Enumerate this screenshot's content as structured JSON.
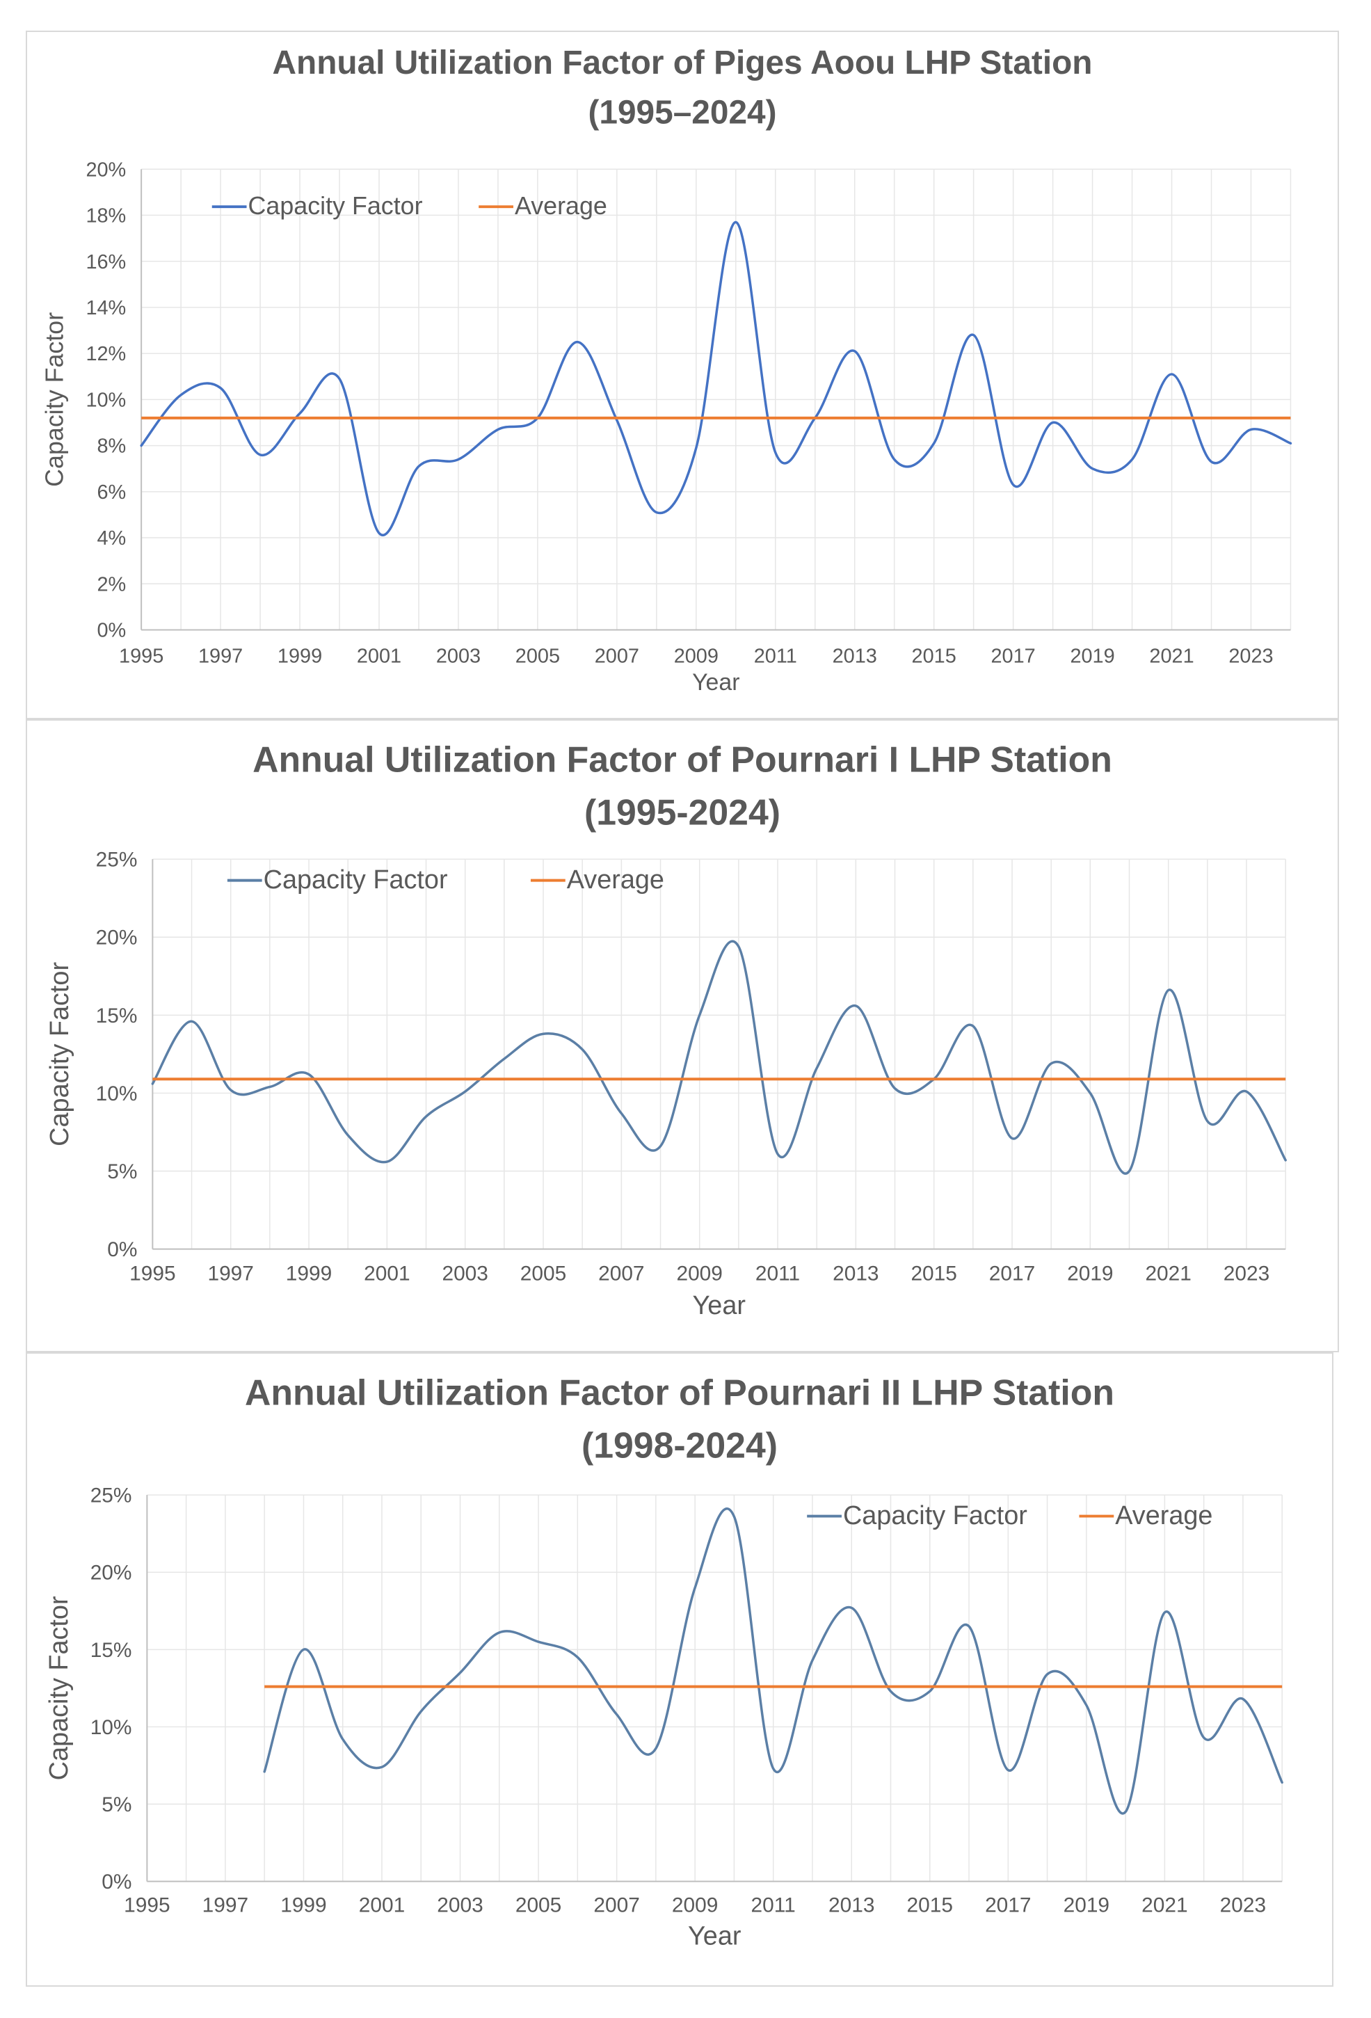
{
  "charts": [
    {
      "title_line1": "Annual Utilization Factor of Piges Aoou LHP Station",
      "title_line2": "(1995–2024)"
    },
    {
      "title_line1": "Annual Utilization Factor of Pournari I LHP Station",
      "title_line2": "(1995-2024)"
    },
    {
      "title_line1": "Annual Utilization Factor of Pournari II LHP Station",
      "title_line2": "(1998-2024)"
    }
  ],
  "colors": {
    "capacity": "#4472c4",
    "capacity_muted": "#5b7fa6",
    "average": "#ed7d31",
    "grid": "#e6e6e6",
    "axis": "#bfbfbf",
    "text": "#595959"
  },
  "chart_data": [
    {
      "type": "line",
      "title": "Annual Utilization Factor of Piges Aoou LHP Station (1995–2024)",
      "xlabel": "Year",
      "ylabel": "Capacity Factor",
      "xlim": [
        1995,
        2024
      ],
      "ylim": [
        0,
        20
      ],
      "yticks": [
        0,
        2,
        4,
        6,
        8,
        10,
        12,
        14,
        16,
        18,
        20
      ],
      "ytick_labels": [
        "0%",
        "2%",
        "4%",
        "6%",
        "8%",
        "10%",
        "12%",
        "14%",
        "16%",
        "18%",
        "20%"
      ],
      "xticks": [
        1995,
        1997,
        1999,
        2001,
        2003,
        2005,
        2007,
        2009,
        2011,
        2013,
        2015,
        2017,
        2019,
        2021,
        2023
      ],
      "xtick_labels": [
        "1995",
        "1997",
        "1999",
        "2001",
        "2003",
        "2005",
        "2007",
        "2009",
        "2011",
        "2013",
        "2015",
        "2017",
        "2019",
        "2021",
        "2023"
      ],
      "legend": {
        "position": "top-left",
        "entries": [
          "Capacity Factor",
          "Average"
        ]
      },
      "series": [
        {
          "name": "Capacity Factor",
          "x": [
            1995,
            1996,
            1997,
            1998,
            1999,
            2000,
            2001,
            2002,
            2003,
            2004,
            2005,
            2006,
            2007,
            2008,
            2009,
            2010,
            2011,
            2012,
            2013,
            2014,
            2015,
            2016,
            2017,
            2018,
            2019,
            2020,
            2021,
            2022,
            2023,
            2024
          ],
          "values": [
            8.0,
            10.2,
            10.5,
            7.6,
            9.4,
            10.9,
            4.2,
            7.1,
            7.4,
            8.7,
            9.2,
            12.5,
            9.1,
            5.1,
            7.9,
            17.7,
            7.7,
            9.2,
            12.1,
            7.4,
            8.1,
            12.8,
            6.3,
            9.0,
            7.0,
            7.4,
            11.1,
            7.3,
            8.7,
            8.1
          ]
        },
        {
          "name": "Average",
          "kind": "hline",
          "value": 9.2,
          "x_range": [
            1995,
            2024
          ]
        }
      ]
    },
    {
      "type": "line",
      "title": "Annual Utilization Factor of Pournari I LHP Station (1995-2024)",
      "xlabel": "Year",
      "ylabel": "Capacity Factor",
      "xlim": [
        1995,
        2024
      ],
      "ylim": [
        0,
        25
      ],
      "yticks": [
        0,
        5,
        10,
        15,
        20,
        25
      ],
      "ytick_labels": [
        "0%",
        "5%",
        "10%",
        "15%",
        "20%",
        "25%"
      ],
      "xticks": [
        1995,
        1997,
        1999,
        2001,
        2003,
        2005,
        2007,
        2009,
        2011,
        2013,
        2015,
        2017,
        2019,
        2021,
        2023
      ],
      "xtick_labels": [
        "1995",
        "1997",
        "1999",
        "2001",
        "2003",
        "2005",
        "2007",
        "2009",
        "2011",
        "2013",
        "2015",
        "2017",
        "2019",
        "2021",
        "2023"
      ],
      "legend": {
        "position": "top-left",
        "entries": [
          "Capacity Factor",
          "Average"
        ]
      },
      "series": [
        {
          "name": "Capacity Factor",
          "x": [
            1995,
            1996,
            1997,
            1998,
            1999,
            2000,
            2001,
            2002,
            2003,
            2004,
            2005,
            2006,
            2007,
            2008,
            2009,
            2010,
            2011,
            2012,
            2013,
            2014,
            2015,
            2016,
            2017,
            2018,
            2019,
            2020,
            2021,
            2022,
            2023,
            2024
          ],
          "values": [
            10.6,
            14.6,
            10.2,
            10.4,
            11.2,
            7.3,
            5.6,
            8.5,
            10.1,
            12.2,
            13.8,
            12.8,
            8.7,
            6.6,
            15.0,
            19.4,
            6.1,
            11.6,
            15.6,
            10.3,
            10.9,
            14.3,
            7.1,
            11.9,
            10.0,
            5.0,
            16.6,
            8.2,
            10.1,
            5.7
          ]
        },
        {
          "name": "Average",
          "kind": "hline",
          "value": 10.9,
          "x_range": [
            1995,
            2024
          ]
        }
      ]
    },
    {
      "type": "line",
      "title": "Annual Utilization Factor of Pournari II LHP Station (1998-2024)",
      "xlabel": "Year",
      "ylabel": "Capacity Factor",
      "xlim": [
        1995,
        2024
      ],
      "ylim": [
        0,
        25
      ],
      "yticks": [
        0,
        5,
        10,
        15,
        20,
        25
      ],
      "ytick_labels": [
        "0%",
        "5%",
        "10%",
        "15%",
        "20%",
        "25%"
      ],
      "xticks": [
        1995,
        1997,
        1999,
        2001,
        2003,
        2005,
        2007,
        2009,
        2011,
        2013,
        2015,
        2017,
        2019,
        2021,
        2023
      ],
      "xtick_labels": [
        "1995",
        "1997",
        "1999",
        "2001",
        "2003",
        "2005",
        "2007",
        "2009",
        "2011",
        "2013",
        "2015",
        "2017",
        "2019",
        "2021",
        "2023"
      ],
      "legend": {
        "position": "top-right",
        "entries": [
          "Capacity Factor",
          "Average"
        ]
      },
      "series": [
        {
          "name": "Capacity Factor",
          "x": [
            1998,
            1999,
            2000,
            2001,
            2002,
            2003,
            2004,
            2005,
            2006,
            2007,
            2008,
            2009,
            2010,
            2011,
            2012,
            2013,
            2014,
            2015,
            2016,
            2017,
            2018,
            2019,
            2020,
            2021,
            2022,
            2023,
            2024
          ],
          "values": [
            7.1,
            15.0,
            9.2,
            7.4,
            11.0,
            13.5,
            16.1,
            15.5,
            14.5,
            10.8,
            8.6,
            19.0,
            23.6,
            7.3,
            14.3,
            17.7,
            12.3,
            12.3,
            16.5,
            7.2,
            13.4,
            11.4,
            4.5,
            17.4,
            9.3,
            11.8,
            6.4
          ]
        },
        {
          "name": "Average",
          "kind": "hline",
          "value": 12.6,
          "x_range": [
            1998,
            2024
          ]
        }
      ]
    }
  ]
}
